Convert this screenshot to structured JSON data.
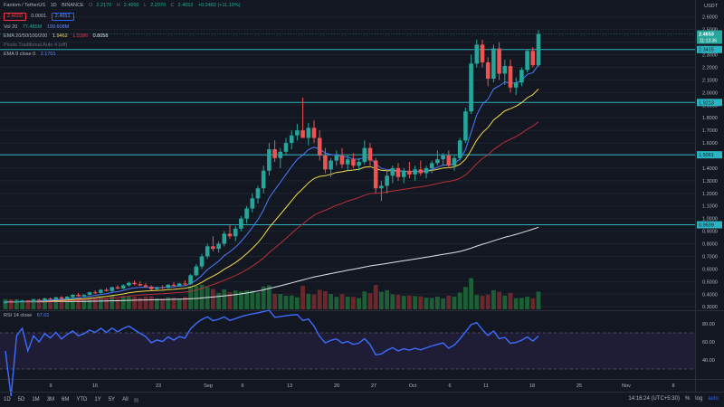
{
  "header": {
    "symbol": "Fantom / TetherUS",
    "interval": "1D",
    "exchange": "BINANCE",
    "ohlc": {
      "o_label": "O",
      "o": "2.2170",
      "h_label": "H",
      "h": "2.4950",
      "l_label": "L",
      "l": "2.2070",
      "c_label": "C",
      "c": "2.4653",
      "change": "+0.2482 (+11.19%)"
    },
    "sell_price": "2.4650",
    "spread": "0.0001",
    "buy_price": "2.4651"
  },
  "indicators": {
    "vol": {
      "label": "Vol 20",
      "value1": "77.485M",
      "value2": "199.608M"
    },
    "ema_ribbon": {
      "label": "EMA 20/50/100/200",
      "v1": "1.9462",
      "v2": "1.5286",
      "v3": "0.8058"
    },
    "pivots": {
      "label": "Pivots Traditional Auto 4 (off)"
    },
    "ema9": {
      "label": "EMA 9 close 0",
      "value": "2.1701"
    },
    "rsi": {
      "label": "RSI 14 close",
      "value": "67.01"
    }
  },
  "price_axis": {
    "ticks": [
      "2.6000",
      "2.5000",
      "2.4000",
      "2.3000",
      "2.2000",
      "2.1000",
      "2.0000",
      "1.9000",
      "1.8000",
      "1.7000",
      "1.6000",
      "1.5000",
      "1.4000",
      "1.3000",
      "1.2000",
      "1.1000",
      "1.0000",
      "0.9000",
      "0.8000",
      "0.7000",
      "0.6000",
      "0.5000",
      "0.4000",
      "0.3000"
    ],
    "top_label": "USDT",
    "last_price_label": "2.4653",
    "countdown": "11:13:36",
    "level_labels": [
      "2.3415",
      "1.9213",
      "1.5061",
      "0.9509"
    ]
  },
  "rsi_axis": {
    "ticks": [
      "80.00",
      "60.00",
      "40.00"
    ]
  },
  "time_axis": {
    "ticks": [
      "9",
      "16",
      "23",
      "Sep",
      "6",
      "13",
      "20",
      "27",
      "Oct",
      "6",
      "11",
      "18",
      "25",
      "Nov",
      "8"
    ]
  },
  "bottom_bar": {
    "timeframes": [
      "1D",
      "5D",
      "1M",
      "3M",
      "6M",
      "YTD",
      "1Y",
      "5Y",
      "All"
    ],
    "clock": "14:16:24 (UTC+5:30)",
    "pct": "%",
    "log": "log",
    "auto": "auto"
  },
  "colors": {
    "up": "#26a69a",
    "down": "#ef5350",
    "level": "#2bb3c0",
    "ema20": "#4a7dff",
    "ema50": "#f7d94c",
    "ema100": "#b7303a",
    "ema200": "#e0e3eb",
    "rsi": "#3d6cff"
  },
  "chart_data": {
    "type": "candlestick",
    "candles": [
      [
        0.33,
        0.345,
        0.325,
        0.34
      ],
      [
        0.34,
        0.35,
        0.33,
        0.335
      ],
      [
        0.335,
        0.35,
        0.33,
        0.345
      ],
      [
        0.345,
        0.355,
        0.34,
        0.35
      ],
      [
        0.35,
        0.352,
        0.335,
        0.34
      ],
      [
        0.34,
        0.36,
        0.338,
        0.355
      ],
      [
        0.355,
        0.365,
        0.345,
        0.35
      ],
      [
        0.35,
        0.37,
        0.345,
        0.365
      ],
      [
        0.365,
        0.375,
        0.355,
        0.36
      ],
      [
        0.36,
        0.38,
        0.355,
        0.375
      ],
      [
        0.375,
        0.385,
        0.36,
        0.365
      ],
      [
        0.365,
        0.385,
        0.36,
        0.38
      ],
      [
        0.38,
        0.4,
        0.37,
        0.395
      ],
      [
        0.395,
        0.41,
        0.38,
        0.385
      ],
      [
        0.385,
        0.4,
        0.375,
        0.395
      ],
      [
        0.395,
        0.42,
        0.39,
        0.415
      ],
      [
        0.415,
        0.43,
        0.4,
        0.41
      ],
      [
        0.41,
        0.44,
        0.405,
        0.435
      ],
      [
        0.435,
        0.45,
        0.42,
        0.425
      ],
      [
        0.425,
        0.46,
        0.42,
        0.455
      ],
      [
        0.455,
        0.47,
        0.44,
        0.445
      ],
      [
        0.445,
        0.48,
        0.44,
        0.47
      ],
      [
        0.47,
        0.5,
        0.46,
        0.49
      ],
      [
        0.49,
        0.51,
        0.47,
        0.48
      ],
      [
        0.48,
        0.5,
        0.465,
        0.47
      ],
      [
        0.47,
        0.49,
        0.45,
        0.46
      ],
      [
        0.46,
        0.47,
        0.43,
        0.44
      ],
      [
        0.44,
        0.46,
        0.43,
        0.455
      ],
      [
        0.455,
        0.47,
        0.44,
        0.45
      ],
      [
        0.45,
        0.48,
        0.445,
        0.475
      ],
      [
        0.475,
        0.495,
        0.46,
        0.465
      ],
      [
        0.465,
        0.49,
        0.46,
        0.485
      ],
      [
        0.485,
        0.51,
        0.47,
        0.48
      ],
      [
        0.48,
        0.56,
        0.475,
        0.55
      ],
      [
        0.55,
        0.64,
        0.54,
        0.62
      ],
      [
        0.62,
        0.72,
        0.6,
        0.7
      ],
      [
        0.7,
        0.8,
        0.68,
        0.78
      ],
      [
        0.78,
        0.86,
        0.74,
        0.76
      ],
      [
        0.76,
        0.82,
        0.73,
        0.8
      ],
      [
        0.8,
        0.9,
        0.78,
        0.88
      ],
      [
        0.88,
        0.95,
        0.84,
        0.86
      ],
      [
        0.86,
        0.94,
        0.82,
        0.92
      ],
      [
        0.92,
        1.02,
        0.9,
        1.0
      ],
      [
        1.0,
        1.1,
        0.96,
        1.08
      ],
      [
        1.08,
        1.2,
        1.05,
        1.16
      ],
      [
        1.16,
        1.26,
        1.12,
        1.24
      ],
      [
        1.24,
        1.42,
        1.2,
        1.38
      ],
      [
        1.38,
        1.6,
        1.34,
        1.55
      ],
      [
        1.55,
        1.62,
        1.45,
        1.48
      ],
      [
        1.48,
        1.56,
        1.4,
        1.53
      ],
      [
        1.53,
        1.64,
        1.5,
        1.6
      ],
      [
        1.6,
        1.7,
        1.55,
        1.66
      ],
      [
        1.66,
        1.75,
        1.62,
        1.7
      ],
      [
        1.7,
        1.96,
        1.65,
        1.64
      ],
      [
        1.64,
        1.76,
        1.58,
        1.72
      ],
      [
        1.72,
        1.78,
        1.6,
        1.64
      ],
      [
        1.64,
        1.7,
        1.46,
        1.5
      ],
      [
        1.5,
        1.56,
        1.36,
        1.39
      ],
      [
        1.39,
        1.48,
        1.33,
        1.46
      ],
      [
        1.46,
        1.54,
        1.42,
        1.5
      ],
      [
        1.5,
        1.56,
        1.4,
        1.43
      ],
      [
        1.43,
        1.5,
        1.38,
        1.47
      ],
      [
        1.47,
        1.52,
        1.4,
        1.42
      ],
      [
        1.42,
        1.48,
        1.38,
        1.45
      ],
      [
        1.45,
        1.62,
        1.43,
        1.56
      ],
      [
        1.56,
        1.6,
        1.42,
        1.46
      ],
      [
        1.46,
        1.48,
        1.2,
        1.24
      ],
      [
        1.24,
        1.3,
        1.14,
        1.26
      ],
      [
        1.26,
        1.38,
        1.2,
        1.34
      ],
      [
        1.34,
        1.42,
        1.28,
        1.4
      ],
      [
        1.4,
        1.44,
        1.3,
        1.33
      ],
      [
        1.33,
        1.4,
        1.28,
        1.38
      ],
      [
        1.38,
        1.45,
        1.32,
        1.35
      ],
      [
        1.35,
        1.42,
        1.3,
        1.39
      ],
      [
        1.39,
        1.46,
        1.34,
        1.36
      ],
      [
        1.36,
        1.42,
        1.32,
        1.4
      ],
      [
        1.4,
        1.46,
        1.36,
        1.44
      ],
      [
        1.44,
        1.54,
        1.42,
        1.47
      ],
      [
        1.47,
        1.52,
        1.42,
        1.5
      ],
      [
        1.5,
        1.54,
        1.4,
        1.42
      ],
      [
        1.42,
        1.5,
        1.38,
        1.48
      ],
      [
        1.48,
        1.64,
        1.46,
        1.62
      ],
      [
        1.62,
        1.88,
        1.6,
        1.85
      ],
      [
        1.85,
        2.3,
        1.83,
        2.23
      ],
      [
        2.23,
        2.42,
        2.2,
        2.38
      ],
      [
        2.38,
        2.42,
        2.2,
        2.24
      ],
      [
        2.24,
        2.28,
        2.05,
        2.11
      ],
      [
        2.11,
        2.38,
        2.08,
        2.35
      ],
      [
        2.35,
        2.4,
        2.1,
        2.15
      ],
      [
        2.15,
        2.26,
        2.06,
        2.21
      ],
      [
        2.21,
        2.26,
        2.0,
        2.04
      ],
      [
        2.04,
        2.12,
        1.98,
        2.08
      ],
      [
        2.08,
        2.2,
        2.05,
        2.18
      ],
      [
        2.18,
        2.34,
        2.16,
        2.33
      ],
      [
        2.33,
        2.36,
        2.2,
        2.217
      ],
      [
        2.217,
        2.495,
        2.207,
        2.465
      ]
    ],
    "ylim": [
      0.28,
      2.72
    ]
  }
}
